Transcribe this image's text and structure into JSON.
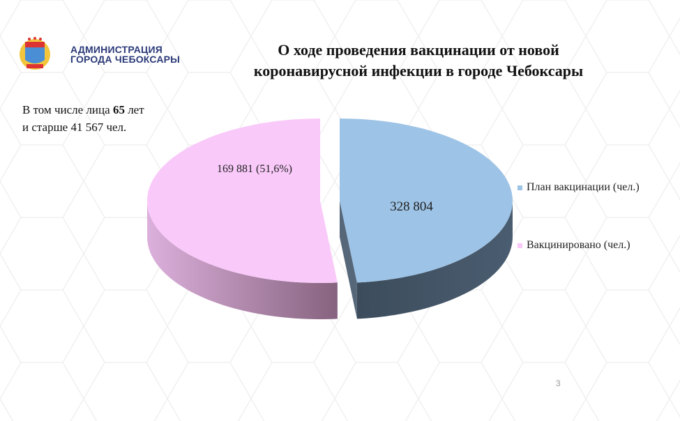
{
  "header": {
    "logo_text_line1": "АДМИНИСТРАЦИЯ",
    "logo_text_line2": "ГОРОДА ЧЕБОКСАРЫ",
    "title_line1": "О ходе проведения вакцинации от новой",
    "title_line2": "коронавирусной инфекции в городе Чебоксары"
  },
  "note": {
    "prefix": "В том числе лица ",
    "bold": "65",
    "suffix": " лет",
    "line2": "и старше 41 567 чел."
  },
  "chart_data": {
    "type": "pie",
    "style": "3d-exploded",
    "series": [
      {
        "name": "План вакцинации (чел.)",
        "value": 328804,
        "label": "328 804",
        "color": "#9dc3e6"
      },
      {
        "name": "Вакцинировано (чел.)",
        "value": 169881,
        "label": "169 881 (51,6%)",
        "percent": 51.6,
        "color": "#f9c9f9"
      }
    ],
    "legend_placement": "right"
  },
  "page_number": "3"
}
